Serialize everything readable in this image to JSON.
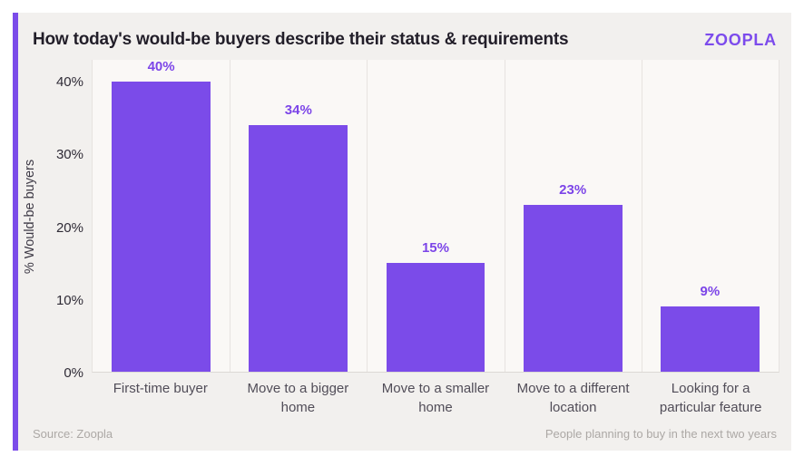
{
  "header": {
    "title": "How today's would-be buyers describe their status & requirements",
    "logo_text": "zoopla"
  },
  "footer": {
    "source": "Source: Zoopla",
    "note": "People planning to buy in the next two years"
  },
  "colors": {
    "accent_purple": "#7B4BE9",
    "label_purple": "#7C45E8",
    "card_background": "#F2F0EE",
    "plot_background": "#FAF8F6",
    "grid_line": "#E7E3E0",
    "title_text": "#221E29",
    "axis_text": "#2E2A35",
    "category_text": "#514D58",
    "footer_text": "#ACA8A5"
  },
  "chart_data": {
    "type": "bar",
    "title": "How today's would-be buyers describe their status & requirements",
    "categories": [
      "First-time buyer",
      "Move to a bigger home",
      "Move to a smaller home",
      "Move to a different location",
      "Looking for a particular feature"
    ],
    "values": [
      40,
      34,
      15,
      23,
      9
    ],
    "value_labels": [
      "40%",
      "34%",
      "15%",
      "23%",
      "9%"
    ],
    "xlabel": "",
    "ylabel": "% Would-be buyers",
    "yticks": [
      0,
      10,
      20,
      30,
      40
    ],
    "ytick_labels": [
      "0%",
      "10%",
      "20%",
      "30%",
      "40%"
    ],
    "ylim": [
      0,
      43
    ],
    "grid": "vertical category separators only",
    "legend": null,
    "bar_color": "#7B4BE9"
  }
}
